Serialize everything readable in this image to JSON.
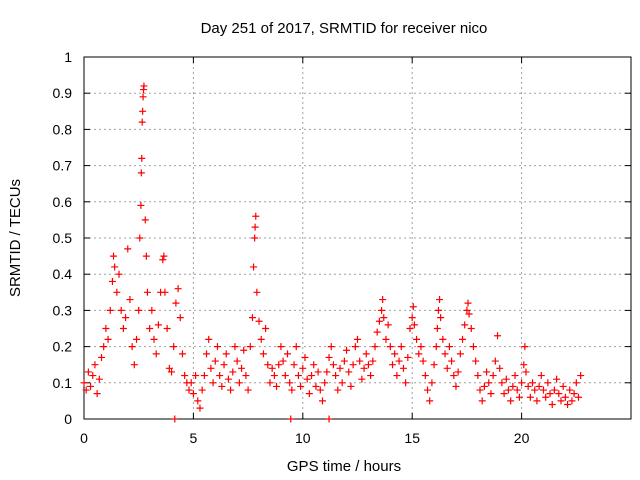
{
  "chart_data": {
    "type": "scatter",
    "title": "Day 251 of 2017, SRMTID for receiver nico",
    "xlabel": "GPS time / hours",
    "ylabel": "SRMTID / TECUs",
    "xlim": [
      0,
      25
    ],
    "ylim": [
      0,
      1
    ],
    "xticks": [
      0,
      5,
      10,
      15,
      20
    ],
    "xtick_labels": [
      "0",
      "5",
      "10",
      "15",
      "20"
    ],
    "yticks": [
      0,
      0.1,
      0.2,
      0.3,
      0.4,
      0.5,
      0.6,
      0.7,
      0.8,
      0.9,
      1
    ],
    "ytick_labels": [
      "0",
      "0.1",
      "0.2",
      "0.3",
      "0.4",
      "0.5",
      "0.6",
      "0.7",
      "0.8",
      "0.9",
      "1"
    ],
    "grid": true,
    "marker": "plus",
    "color": "#ff0000",
    "series": [
      {
        "name": "SRMTID",
        "points": [
          [
            0.0,
            0.1
          ],
          [
            0.1,
            0.08
          ],
          [
            0.2,
            0.13
          ],
          [
            0.3,
            0.09
          ],
          [
            0.4,
            0.12
          ],
          [
            0.5,
            0.15
          ],
          [
            0.6,
            0.07
          ],
          [
            0.7,
            0.11
          ],
          [
            0.8,
            0.17
          ],
          [
            0.9,
            0.2
          ],
          [
            1.0,
            0.25
          ],
          [
            1.1,
            0.22
          ],
          [
            1.2,
            0.3
          ],
          [
            1.3,
            0.38
          ],
          [
            1.35,
            0.45
          ],
          [
            1.4,
            0.42
          ],
          [
            1.5,
            0.35
          ],
          [
            1.6,
            0.4
          ],
          [
            1.7,
            0.3
          ],
          [
            1.8,
            0.25
          ],
          [
            1.9,
            0.28
          ],
          [
            2.0,
            0.47
          ],
          [
            2.1,
            0.33
          ],
          [
            2.2,
            0.2
          ],
          [
            2.3,
            0.15
          ],
          [
            2.4,
            0.22
          ],
          [
            2.5,
            0.3
          ],
          [
            2.55,
            0.5
          ],
          [
            2.6,
            0.59
          ],
          [
            2.62,
            0.68
          ],
          [
            2.64,
            0.72
          ],
          [
            2.66,
            0.82
          ],
          [
            2.68,
            0.85
          ],
          [
            2.7,
            0.89
          ],
          [
            2.72,
            0.91
          ],
          [
            2.74,
            0.92
          ],
          [
            2.8,
            0.55
          ],
          [
            2.85,
            0.45
          ],
          [
            2.9,
            0.35
          ],
          [
            3.0,
            0.25
          ],
          [
            3.1,
            0.3
          ],
          [
            3.2,
            0.22
          ],
          [
            3.3,
            0.18
          ],
          [
            3.4,
            0.26
          ],
          [
            3.5,
            0.35
          ],
          [
            3.6,
            0.44
          ],
          [
            3.65,
            0.45
          ],
          [
            3.7,
            0.35
          ],
          [
            3.8,
            0.25
          ],
          [
            3.9,
            0.14
          ],
          [
            4.0,
            0.13
          ],
          [
            4.1,
            0.2
          ],
          [
            4.2,
            0.32
          ],
          [
            4.3,
            0.36
          ],
          [
            4.4,
            0.28
          ],
          [
            4.5,
            0.18
          ],
          [
            4.6,
            0.12
          ],
          [
            4.7,
            0.1
          ],
          [
            4.8,
            0.08
          ],
          [
            4.9,
            0.1
          ],
          [
            5.0,
            0.07
          ],
          [
            5.1,
            0.12
          ],
          [
            5.2,
            0.05
          ],
          [
            5.3,
            0.03
          ],
          [
            5.4,
            0.08
          ],
          [
            5.5,
            0.12
          ],
          [
            5.6,
            0.18
          ],
          [
            5.7,
            0.22
          ],
          [
            5.8,
            0.14
          ],
          [
            5.9,
            0.1
          ],
          [
            6.0,
            0.16
          ],
          [
            6.1,
            0.2
          ],
          [
            6.2,
            0.12
          ],
          [
            6.3,
            0.09
          ],
          [
            6.4,
            0.15
          ],
          [
            6.5,
            0.18
          ],
          [
            6.6,
            0.11
          ],
          [
            6.7,
            0.08
          ],
          [
            6.8,
            0.13
          ],
          [
            6.9,
            0.2
          ],
          [
            7.0,
            0.16
          ],
          [
            7.1,
            0.1
          ],
          [
            7.2,
            0.14
          ],
          [
            7.3,
            0.19
          ],
          [
            7.4,
            0.12
          ],
          [
            7.5,
            0.08
          ],
          [
            7.6,
            0.2
          ],
          [
            7.7,
            0.28
          ],
          [
            7.75,
            0.42
          ],
          [
            7.8,
            0.5
          ],
          [
            7.82,
            0.53
          ],
          [
            7.85,
            0.56
          ],
          [
            7.9,
            0.35
          ],
          [
            8.0,
            0.27
          ],
          [
            8.1,
            0.22
          ],
          [
            8.2,
            0.18
          ],
          [
            8.3,
            0.25
          ],
          [
            8.4,
            0.15
          ],
          [
            8.5,
            0.1
          ],
          [
            8.6,
            0.14
          ],
          [
            8.7,
            0.12
          ],
          [
            8.8,
            0.09
          ],
          [
            8.9,
            0.15
          ],
          [
            9.0,
            0.2
          ],
          [
            9.1,
            0.16
          ],
          [
            9.2,
            0.12
          ],
          [
            9.3,
            0.18
          ],
          [
            9.4,
            0.1
          ],
          [
            9.5,
            0.08
          ],
          [
            9.6,
            0.15
          ],
          [
            9.7,
            0.2
          ],
          [
            9.8,
            0.12
          ],
          [
            9.9,
            0.09
          ],
          [
            10.0,
            0.14
          ],
          [
            10.1,
            0.17
          ],
          [
            10.2,
            0.11
          ],
          [
            10.3,
            0.07
          ],
          [
            10.4,
            0.12
          ],
          [
            10.5,
            0.15
          ],
          [
            10.6,
            0.09
          ],
          [
            10.7,
            0.13
          ],
          [
            10.8,
            0.08
          ],
          [
            10.9,
            0.05
          ],
          [
            11.0,
            0.1
          ],
          [
            11.1,
            0.13
          ],
          [
            11.2,
            0.17
          ],
          [
            11.3,
            0.2
          ],
          [
            11.4,
            0.15
          ],
          [
            11.5,
            0.12
          ],
          [
            11.6,
            0.08
          ],
          [
            11.7,
            0.14
          ],
          [
            11.8,
            0.1
          ],
          [
            11.9,
            0.16
          ],
          [
            12.0,
            0.19
          ],
          [
            12.1,
            0.13
          ],
          [
            12.2,
            0.09
          ],
          [
            12.3,
            0.15
          ],
          [
            12.4,
            0.2
          ],
          [
            12.5,
            0.22
          ],
          [
            12.6,
            0.16
          ],
          [
            12.7,
            0.11
          ],
          [
            12.8,
            0.14
          ],
          [
            12.9,
            0.18
          ],
          [
            13.0,
            0.15
          ],
          [
            13.1,
            0.12
          ],
          [
            13.2,
            0.16
          ],
          [
            13.3,
            0.2
          ],
          [
            13.4,
            0.24
          ],
          [
            13.5,
            0.27
          ],
          [
            13.6,
            0.3
          ],
          [
            13.65,
            0.33
          ],
          [
            13.7,
            0.28
          ],
          [
            13.8,
            0.22
          ],
          [
            13.9,
            0.26
          ],
          [
            14.0,
            0.2
          ],
          [
            14.1,
            0.15
          ],
          [
            14.2,
            0.18
          ],
          [
            14.3,
            0.12
          ],
          [
            14.4,
            0.16
          ],
          [
            14.5,
            0.2
          ],
          [
            14.6,
            0.14
          ],
          [
            14.7,
            0.1
          ],
          [
            14.8,
            0.17
          ],
          [
            14.9,
            0.25
          ],
          [
            15.0,
            0.28
          ],
          [
            15.05,
            0.31
          ],
          [
            15.1,
            0.26
          ],
          [
            15.2,
            0.22
          ],
          [
            15.3,
            0.18
          ],
          [
            15.4,
            0.2
          ],
          [
            15.5,
            0.16
          ],
          [
            15.6,
            0.12
          ],
          [
            15.7,
            0.08
          ],
          [
            15.8,
            0.05
          ],
          [
            15.9,
            0.1
          ],
          [
            16.0,
            0.15
          ],
          [
            16.1,
            0.2
          ],
          [
            16.15,
            0.25
          ],
          [
            16.2,
            0.3
          ],
          [
            16.25,
            0.33
          ],
          [
            16.3,
            0.28
          ],
          [
            16.4,
            0.22
          ],
          [
            16.5,
            0.18
          ],
          [
            16.6,
            0.14
          ],
          [
            16.7,
            0.2
          ],
          [
            16.8,
            0.16
          ],
          [
            16.9,
            0.12
          ],
          [
            17.0,
            0.09
          ],
          [
            17.1,
            0.13
          ],
          [
            17.2,
            0.18
          ],
          [
            17.3,
            0.22
          ],
          [
            17.4,
            0.26
          ],
          [
            17.5,
            0.3
          ],
          [
            17.55,
            0.32
          ],
          [
            17.6,
            0.29
          ],
          [
            17.7,
            0.25
          ],
          [
            17.8,
            0.2
          ],
          [
            17.9,
            0.16
          ],
          [
            18.0,
            0.12
          ],
          [
            18.1,
            0.08
          ],
          [
            18.2,
            0.05
          ],
          [
            18.3,
            0.09
          ],
          [
            18.4,
            0.13
          ],
          [
            18.5,
            0.1
          ],
          [
            18.6,
            0.07
          ],
          [
            18.7,
            0.12
          ],
          [
            18.8,
            0.16
          ],
          [
            18.9,
            0.23
          ],
          [
            19.0,
            0.14
          ],
          [
            19.1,
            0.1
          ],
          [
            19.2,
            0.07
          ],
          [
            19.3,
            0.11
          ],
          [
            19.4,
            0.08
          ],
          [
            19.5,
            0.05
          ],
          [
            19.6,
            0.09
          ],
          [
            19.7,
            0.12
          ],
          [
            19.8,
            0.08
          ],
          [
            19.9,
            0.06
          ],
          [
            20.0,
            0.1
          ],
          [
            20.1,
            0.15
          ],
          [
            20.15,
            0.2
          ],
          [
            20.2,
            0.13
          ],
          [
            20.3,
            0.09
          ],
          [
            20.4,
            0.06
          ],
          [
            20.5,
            0.1
          ],
          [
            20.6,
            0.08
          ],
          [
            20.7,
            0.05
          ],
          [
            20.8,
            0.09
          ],
          [
            20.9,
            0.12
          ],
          [
            21.0,
            0.08
          ],
          [
            21.1,
            0.06
          ],
          [
            21.2,
            0.1
          ],
          [
            21.3,
            0.07
          ],
          [
            21.4,
            0.04
          ],
          [
            21.5,
            0.08
          ],
          [
            21.6,
            0.11
          ],
          [
            21.7,
            0.07
          ],
          [
            21.8,
            0.05
          ],
          [
            21.9,
            0.09
          ],
          [
            22.0,
            0.06
          ],
          [
            22.1,
            0.04
          ],
          [
            22.2,
            0.08
          ],
          [
            22.3,
            0.05
          ],
          [
            22.4,
            0.07
          ],
          [
            22.5,
            0.1
          ],
          [
            22.6,
            0.06
          ],
          [
            22.7,
            0.12
          ],
          [
            4.15,
            0.0
          ],
          [
            9.45,
            0.0
          ],
          [
            11.2,
            0.0
          ]
        ]
      }
    ]
  }
}
